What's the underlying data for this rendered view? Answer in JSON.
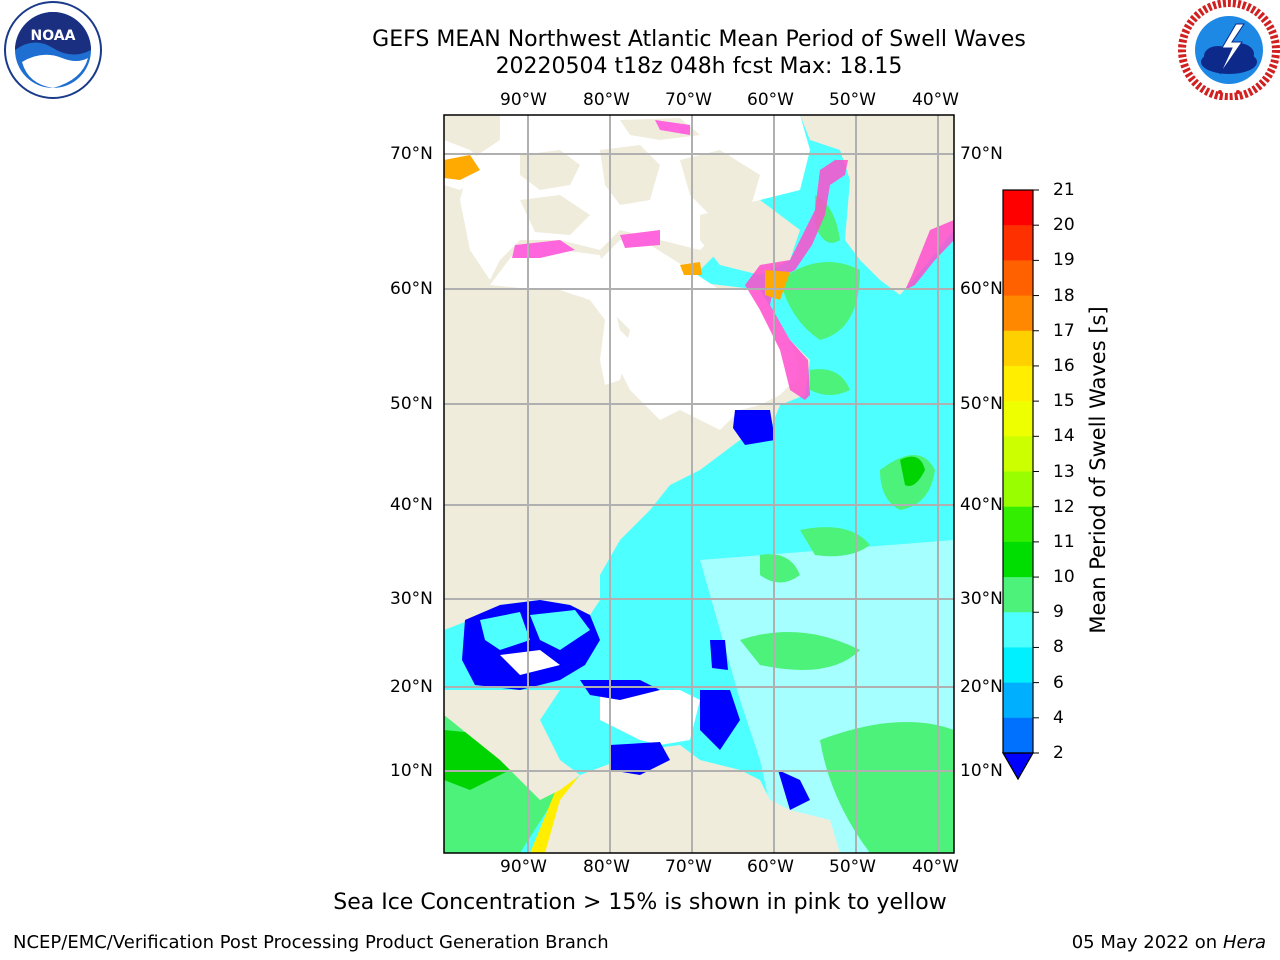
{
  "header": {
    "title_line1": "GEFS MEAN Northwest Atlantic Mean Period of Swell Waves",
    "title_line2": "20220504 t18z 048h fcst   Max: 18.15"
  },
  "logos": {
    "noaa_text": "NOAA",
    "noaa_ring_text": "NATIONAL OCEANIC AND ATMOSPHERIC ADMINISTRATION",
    "noaa_ring_bottom": "U.S. DEPARTMENT OF COMMERCE",
    "nws_ring_text": "NATIONAL WEATHER SERVICE"
  },
  "map": {
    "lon_labels": [
      "90°W",
      "80°W",
      "70°W",
      "60°W",
      "50°W",
      "40°W"
    ],
    "lat_labels": [
      "70°N",
      "60°N",
      "50°N",
      "40°N",
      "30°N",
      "20°N",
      "10°N"
    ],
    "colors": {
      "land": "#efecdc",
      "ice_free_land": "#ffffff",
      "grid": "#b0b0b0",
      "swell_low": "#0000ff",
      "swell_4_6": "#00e5ff",
      "swell_6_8": "#4dffff",
      "swell_8_9": "#a6ffff",
      "swell_9_10": "#4cf27a",
      "swell_10_11": "#00d400",
      "sea_ice": "#ff4dcc"
    }
  },
  "colorbar": {
    "title": "Mean Period of Swell Waves [s]",
    "ticks": [
      "21",
      "20",
      "19",
      "18",
      "17",
      "16",
      "15",
      "14",
      "13",
      "12",
      "11",
      "10",
      "9",
      "8",
      "6",
      "4",
      "2"
    ],
    "colors": [
      "#ff0000",
      "#ff3000",
      "#ff6000",
      "#ff8800",
      "#ffaa00",
      "#ffd000",
      "#ffee00",
      "#eeff00",
      "#ccff00",
      "#99ff00",
      "#33ee00",
      "#00dd00",
      "#4cf27a",
      "#a6ffff",
      "#4dffff",
      "#00f0ff",
      "#00b0ff",
      "#0070ff",
      "#0000ff"
    ]
  },
  "note": "Sea Ice Concentration > 15% is shown in pink to yellow",
  "footer": {
    "left": "NCEP/EMC/Verification Post Processing Product Generation Branch",
    "date": "05 May 2022 on",
    "machine": "Hera"
  }
}
